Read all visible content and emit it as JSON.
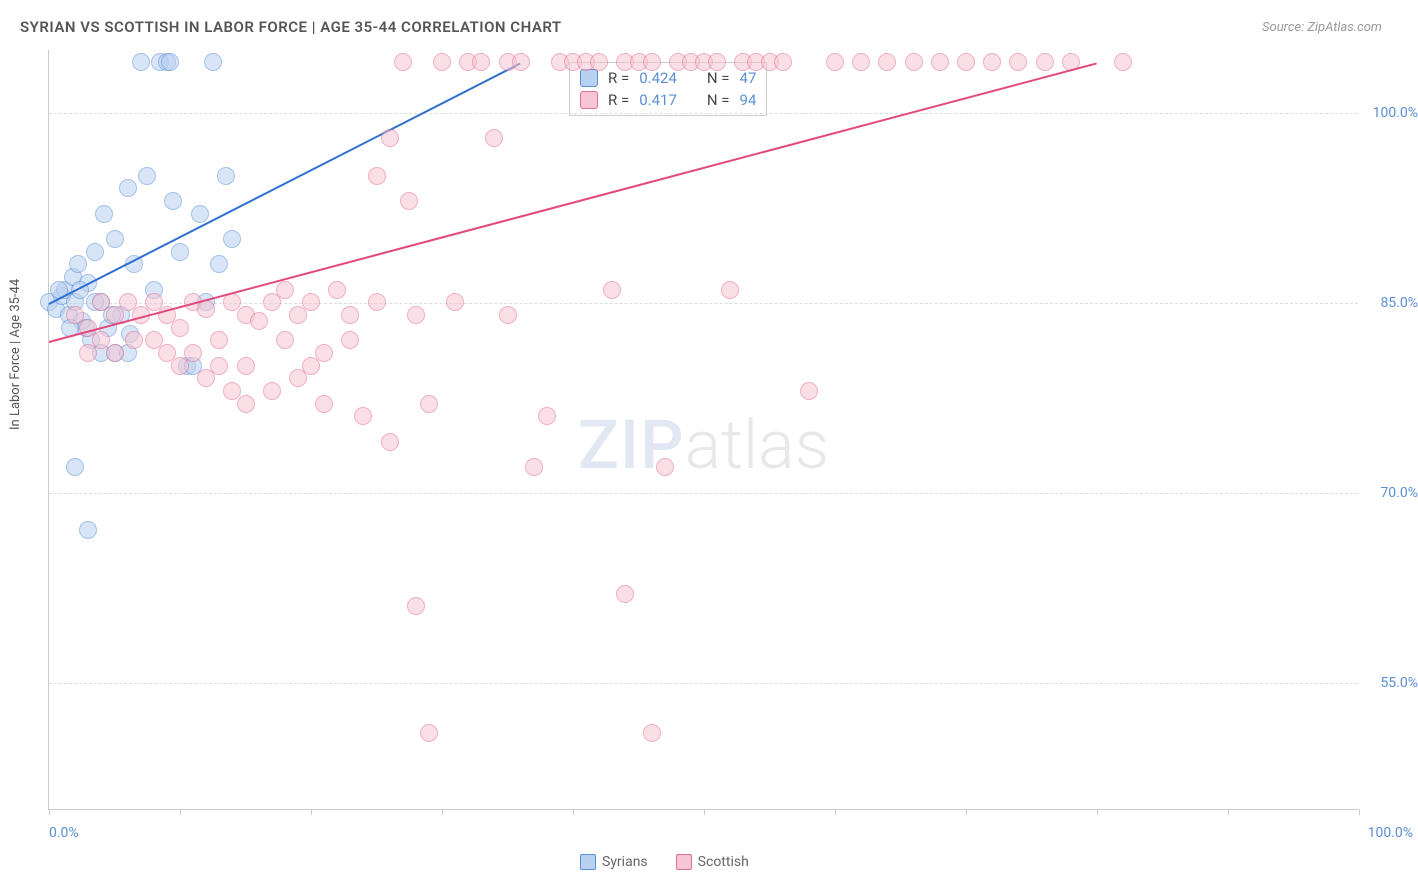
{
  "title": "SYRIAN VS SCOTTISH IN LABOR FORCE | AGE 35-44 CORRELATION CHART",
  "source_label": "Source: ZipAtlas.com",
  "y_axis_label": "In Labor Force | Age 35-44",
  "watermark": {
    "part1": "ZIP",
    "part2": "atlas"
  },
  "chart": {
    "type": "scatter",
    "background_color": "#ffffff",
    "grid_color": "#dddddd",
    "axis_color": "#cccccc",
    "label_color": "#555555",
    "tick_label_color": "#5b8fd6",
    "xlim": [
      0,
      100
    ],
    "ylim": [
      45,
      105
    ],
    "x_ticks": [
      0,
      10,
      20,
      30,
      40,
      50,
      60,
      70,
      80,
      90,
      100
    ],
    "x_tick_labels": {
      "0": "0.0%",
      "100": "100.0%"
    },
    "y_gridlines": [
      55,
      70,
      85,
      100
    ],
    "y_tick_labels": {
      "55": "55.0%",
      "70": "70.0%",
      "85": "85.0%",
      "100": "100.0%"
    },
    "point_radius": 9,
    "point_opacity": 0.55,
    "line_width": 2
  },
  "series": [
    {
      "name": "Syrians",
      "color_fill": "#b9d1f0",
      "color_stroke": "#5b8fd6",
      "line_color": "#2f6fd0",
      "correlation_r": "0.424",
      "n": "47",
      "trend": {
        "x1": 0,
        "y1": 85,
        "x2": 36,
        "y2": 104
      },
      "points": [
        [
          0,
          85
        ],
        [
          0.5,
          84.5
        ],
        [
          1,
          85.5
        ],
        [
          1.2,
          86
        ],
        [
          1.5,
          84
        ],
        [
          1.8,
          87
        ],
        [
          2,
          85
        ],
        [
          2.2,
          88
        ],
        [
          2.5,
          83.5
        ],
        [
          3,
          86.5
        ],
        [
          3.2,
          82
        ],
        [
          3.5,
          89
        ],
        [
          4,
          85
        ],
        [
          4.2,
          92
        ],
        [
          4.5,
          83
        ],
        [
          5,
          90
        ],
        [
          5.5,
          84
        ],
        [
          6,
          94
        ],
        [
          6.2,
          82.5
        ],
        [
          6.5,
          88
        ],
        [
          7,
          104
        ],
        [
          7.5,
          95
        ],
        [
          8,
          86
        ],
        [
          8.5,
          104
        ],
        [
          9,
          104
        ],
        [
          9.2,
          104
        ],
        [
          9.5,
          93
        ],
        [
          2,
          72
        ],
        [
          10,
          89
        ],
        [
          10.5,
          80
        ],
        [
          11,
          80
        ],
        [
          11.5,
          92
        ],
        [
          12,
          85
        ],
        [
          12.5,
          104
        ],
        [
          13,
          88
        ],
        [
          13.5,
          95
        ],
        [
          14,
          90
        ],
        [
          5,
          81
        ],
        [
          6,
          81
        ],
        [
          3,
          67
        ],
        [
          3.5,
          85
        ],
        [
          4,
          81
        ],
        [
          2.8,
          83
        ],
        [
          1.6,
          83
        ],
        [
          0.8,
          86
        ],
        [
          2.4,
          86
        ],
        [
          4.8,
          84
        ]
      ]
    },
    {
      "name": "Scottish",
      "color_fill": "#f6c6d4",
      "color_stroke": "#e36f93",
      "line_color": "#e2487a",
      "correlation_r": "0.417",
      "n": "94",
      "trend": {
        "x1": 0,
        "y1": 82,
        "x2": 80,
        "y2": 104
      },
      "points": [
        [
          2,
          84
        ],
        [
          3,
          83
        ],
        [
          4,
          85
        ],
        [
          5,
          84
        ],
        [
          6,
          85
        ],
        [
          6.5,
          82
        ],
        [
          7,
          84
        ],
        [
          8,
          85
        ],
        [
          9,
          84
        ],
        [
          10,
          83
        ],
        [
          11,
          85
        ],
        [
          12,
          84.5
        ],
        [
          13,
          82
        ],
        [
          14,
          85
        ],
        [
          15,
          84
        ],
        [
          15,
          80
        ],
        [
          16,
          83.5
        ],
        [
          17,
          85
        ],
        [
          18,
          82
        ],
        [
          18,
          86
        ],
        [
          19,
          84
        ],
        [
          20,
          85
        ],
        [
          20,
          80
        ],
        [
          21,
          77
        ],
        [
          22,
          86
        ],
        [
          23,
          84
        ],
        [
          24,
          76
        ],
        [
          25,
          85
        ],
        [
          25,
          95
        ],
        [
          26,
          74
        ],
        [
          26,
          98
        ],
        [
          27,
          104
        ],
        [
          27.5,
          93
        ],
        [
          28,
          84
        ],
        [
          28,
          61
        ],
        [
          29,
          77
        ],
        [
          29,
          51
        ],
        [
          30,
          104
        ],
        [
          31,
          85
        ],
        [
          32,
          104
        ],
        [
          33,
          104
        ],
        [
          34,
          98
        ],
        [
          35,
          104
        ],
        [
          35,
          84
        ],
        [
          36,
          104
        ],
        [
          37,
          72
        ],
        [
          38,
          76
        ],
        [
          39,
          104
        ],
        [
          40,
          104
        ],
        [
          41,
          104
        ],
        [
          42,
          104
        ],
        [
          43,
          86
        ],
        [
          44,
          104
        ],
        [
          44,
          62
        ],
        [
          45,
          104
        ],
        [
          46,
          104
        ],
        [
          46,
          51
        ],
        [
          47,
          72
        ],
        [
          48,
          104
        ],
        [
          49,
          104
        ],
        [
          50,
          104
        ],
        [
          51,
          104
        ],
        [
          52,
          86
        ],
        [
          53,
          104
        ],
        [
          54,
          104
        ],
        [
          55,
          104
        ],
        [
          56,
          104
        ],
        [
          58,
          78
        ],
        [
          60,
          104
        ],
        [
          62,
          104
        ],
        [
          64,
          104
        ],
        [
          66,
          104
        ],
        [
          68,
          104
        ],
        [
          70,
          104
        ],
        [
          72,
          104
        ],
        [
          74,
          104
        ],
        [
          76,
          104
        ],
        [
          78,
          104
        ],
        [
          82,
          104
        ],
        [
          8,
          82
        ],
        [
          9,
          81
        ],
        [
          10,
          80
        ],
        [
          11,
          81
        ],
        [
          12,
          79
        ],
        [
          13,
          80
        ],
        [
          14,
          78
        ],
        [
          15,
          77
        ],
        [
          17,
          78
        ],
        [
          19,
          79
        ],
        [
          21,
          81
        ],
        [
          23,
          82
        ],
        [
          4,
          82
        ],
        [
          5,
          81
        ],
        [
          3,
          81
        ]
      ]
    }
  ],
  "legend_stats": {
    "r_label": "R =",
    "n_label": "N ="
  },
  "bottom_legend": [
    {
      "label": "Syrians",
      "fill": "#b9d1f0",
      "stroke": "#5b8fd6"
    },
    {
      "label": "Scottish",
      "fill": "#f6c6d4",
      "stroke": "#e36f93"
    }
  ]
}
